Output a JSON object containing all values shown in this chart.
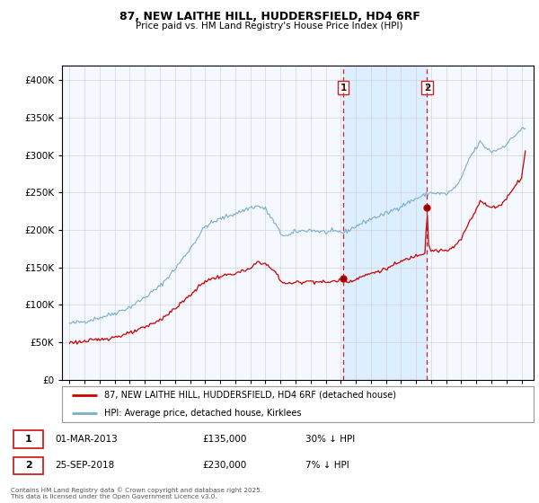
{
  "title": "87, NEW LAITHE HILL, HUDDERSFIELD, HD4 6RF",
  "subtitle": "Price paid vs. HM Land Registry's House Price Index (HPI)",
  "legend_line1": "87, NEW LAITHE HILL, HUDDERSFIELD, HD4 6RF (detached house)",
  "legend_line2": "HPI: Average price, detached house, Kirklees",
  "footer": "Contains HM Land Registry data © Crown copyright and database right 2025.\nThis data is licensed under the Open Government Licence v3.0.",
  "sale1_date": "01-MAR-2013",
  "sale1_price": "£135,000",
  "sale1_hpi": "30% ↓ HPI",
  "sale2_date": "25-SEP-2018",
  "sale2_price": "£230,000",
  "sale2_hpi": "7% ↓ HPI",
  "vline1_x": 2013.17,
  "vline2_x": 2018.73,
  "sale1_price_val": 135000,
  "sale2_price_val": 230000,
  "highlight_color": "#ddeeff",
  "vline_color": "#CC2222",
  "red_line_color": "#CC0000",
  "blue_line_color": "#7AADCC",
  "background_color": "#FFFFFF",
  "plot_bg_color": "#F5F8FF",
  "ylim": [
    0,
    420000
  ],
  "xlim": [
    1994.5,
    2025.8
  ],
  "yticks": [
    0,
    50000,
    100000,
    150000,
    200000,
    250000,
    300000,
    350000,
    400000
  ],
  "xticks": [
    1995,
    1996,
    1997,
    1998,
    1999,
    2000,
    2001,
    2002,
    2003,
    2004,
    2005,
    2006,
    2007,
    2008,
    2009,
    2010,
    2011,
    2012,
    2013,
    2014,
    2015,
    2016,
    2017,
    2018,
    2019,
    2020,
    2021,
    2022,
    2023,
    2024,
    2025
  ]
}
